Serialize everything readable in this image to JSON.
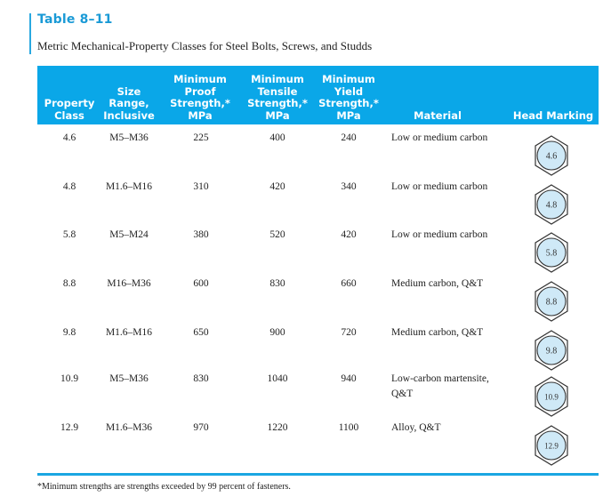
{
  "table": {
    "number": "Table 8–11",
    "title": "Metric Mechanical-Property Classes for Steel Bolts, Screws, and Studds",
    "headers": {
      "property_class": [
        "Property",
        "Class"
      ],
      "size_range": [
        "Size",
        "Range,",
        "Inclusive"
      ],
      "proof": [
        "Minimum",
        "Proof",
        "Strength,*",
        "MPa"
      ],
      "tensile": [
        "Minimum",
        "Tensile",
        "Strength,*",
        "MPa"
      ],
      "yield": [
        "Minimum",
        "Yield",
        "Strength,*",
        "MPa"
      ],
      "material": [
        "Material"
      ],
      "head_marking": [
        "Head Marking"
      ]
    },
    "rows": [
      {
        "class": "4.6",
        "size": "M5–M36",
        "proof": "225",
        "tensile": "400",
        "yield": "240",
        "material": [
          "Low or medium carbon"
        ],
        "marking": "4.6"
      },
      {
        "class": "4.8",
        "size": "M1.6–M16",
        "proof": "310",
        "tensile": "420",
        "yield": "340",
        "material": [
          "Low or medium carbon"
        ],
        "marking": "4.8"
      },
      {
        "class": "5.8",
        "size": "M5–M24",
        "proof": "380",
        "tensile": "520",
        "yield": "420",
        "material": [
          "Low or medium carbon"
        ],
        "marking": "5.8"
      },
      {
        "class": "8.8",
        "size": "M16–M36",
        "proof": "600",
        "tensile": "830",
        "yield": "660",
        "material": [
          "Medium carbon, Q&T"
        ],
        "marking": "8.8"
      },
      {
        "class": "9.8",
        "size": "M1.6–M16",
        "proof": "650",
        "tensile": "900",
        "yield": "720",
        "material": [
          "Medium carbon, Q&T"
        ],
        "marking": "9.8"
      },
      {
        "class": "10.9",
        "size": "M5–M36",
        "proof": "830",
        "tensile": "1040",
        "yield": "940",
        "material": [
          "Low-carbon martensite,",
          "Q&T"
        ],
        "marking": "10.9"
      },
      {
        "class": "12.9",
        "size": "M1.6–M36",
        "proof": "970",
        "tensile": "1220",
        "yield": "1100",
        "material": [
          "Alloy, Q&T"
        ],
        "marking": "12.9"
      }
    ],
    "footnote": "*Minimum strengths are strengths exceeded by 99 percent of fasteners."
  },
  "colors": {
    "accent": "#0aa7e8",
    "marking_fill": "#cfe9f7"
  }
}
